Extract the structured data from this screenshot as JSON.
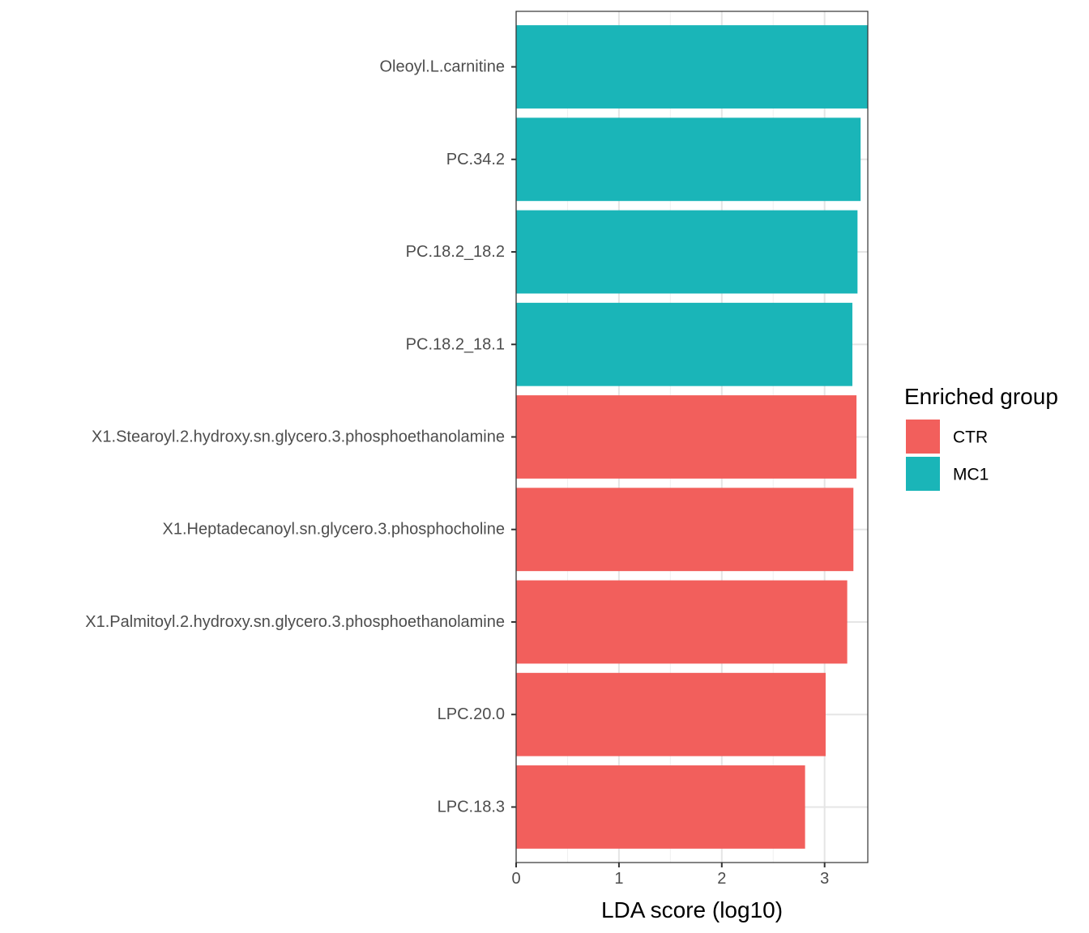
{
  "chart_data": {
    "type": "bar",
    "orientation": "horizontal",
    "xlabel": "LDA score (log10)",
    "ylabel": "",
    "xlim": [
      0,
      3.42
    ],
    "xticks": [
      0,
      1,
      2,
      3
    ],
    "grid": true,
    "legend": {
      "title": "Enriched group",
      "position": "right",
      "items": [
        {
          "name": "CTR",
          "color": "#F25F5C"
        },
        {
          "name": "MC1",
          "color": "#1AB5B8"
        }
      ]
    },
    "bars": [
      {
        "label": "Oleoyl.L.carnitine",
        "value": 3.42,
        "group": "MC1"
      },
      {
        "label": "PC.34.2",
        "value": 3.35,
        "group": "MC1"
      },
      {
        "label": "PC.18.2_18.2",
        "value": 3.32,
        "group": "MC1"
      },
      {
        "label": "PC.18.2_18.1",
        "value": 3.27,
        "group": "MC1"
      },
      {
        "label": "X1.Stearoyl.2.hydroxy.sn.glycero.3.phosphoethanolamine",
        "value": 3.31,
        "group": "CTR"
      },
      {
        "label": "X1.Heptadecanoyl.sn.glycero.3.phosphocholine",
        "value": 3.28,
        "group": "CTR"
      },
      {
        "label": "X1.Palmitoyl.2.hydroxy.sn.glycero.3.phosphoethanolamine",
        "value": 3.22,
        "group": "CTR"
      },
      {
        "label": "LPC.20.0",
        "value": 3.01,
        "group": "CTR"
      },
      {
        "label": "LPC.18.3",
        "value": 2.81,
        "group": "CTR"
      }
    ]
  }
}
